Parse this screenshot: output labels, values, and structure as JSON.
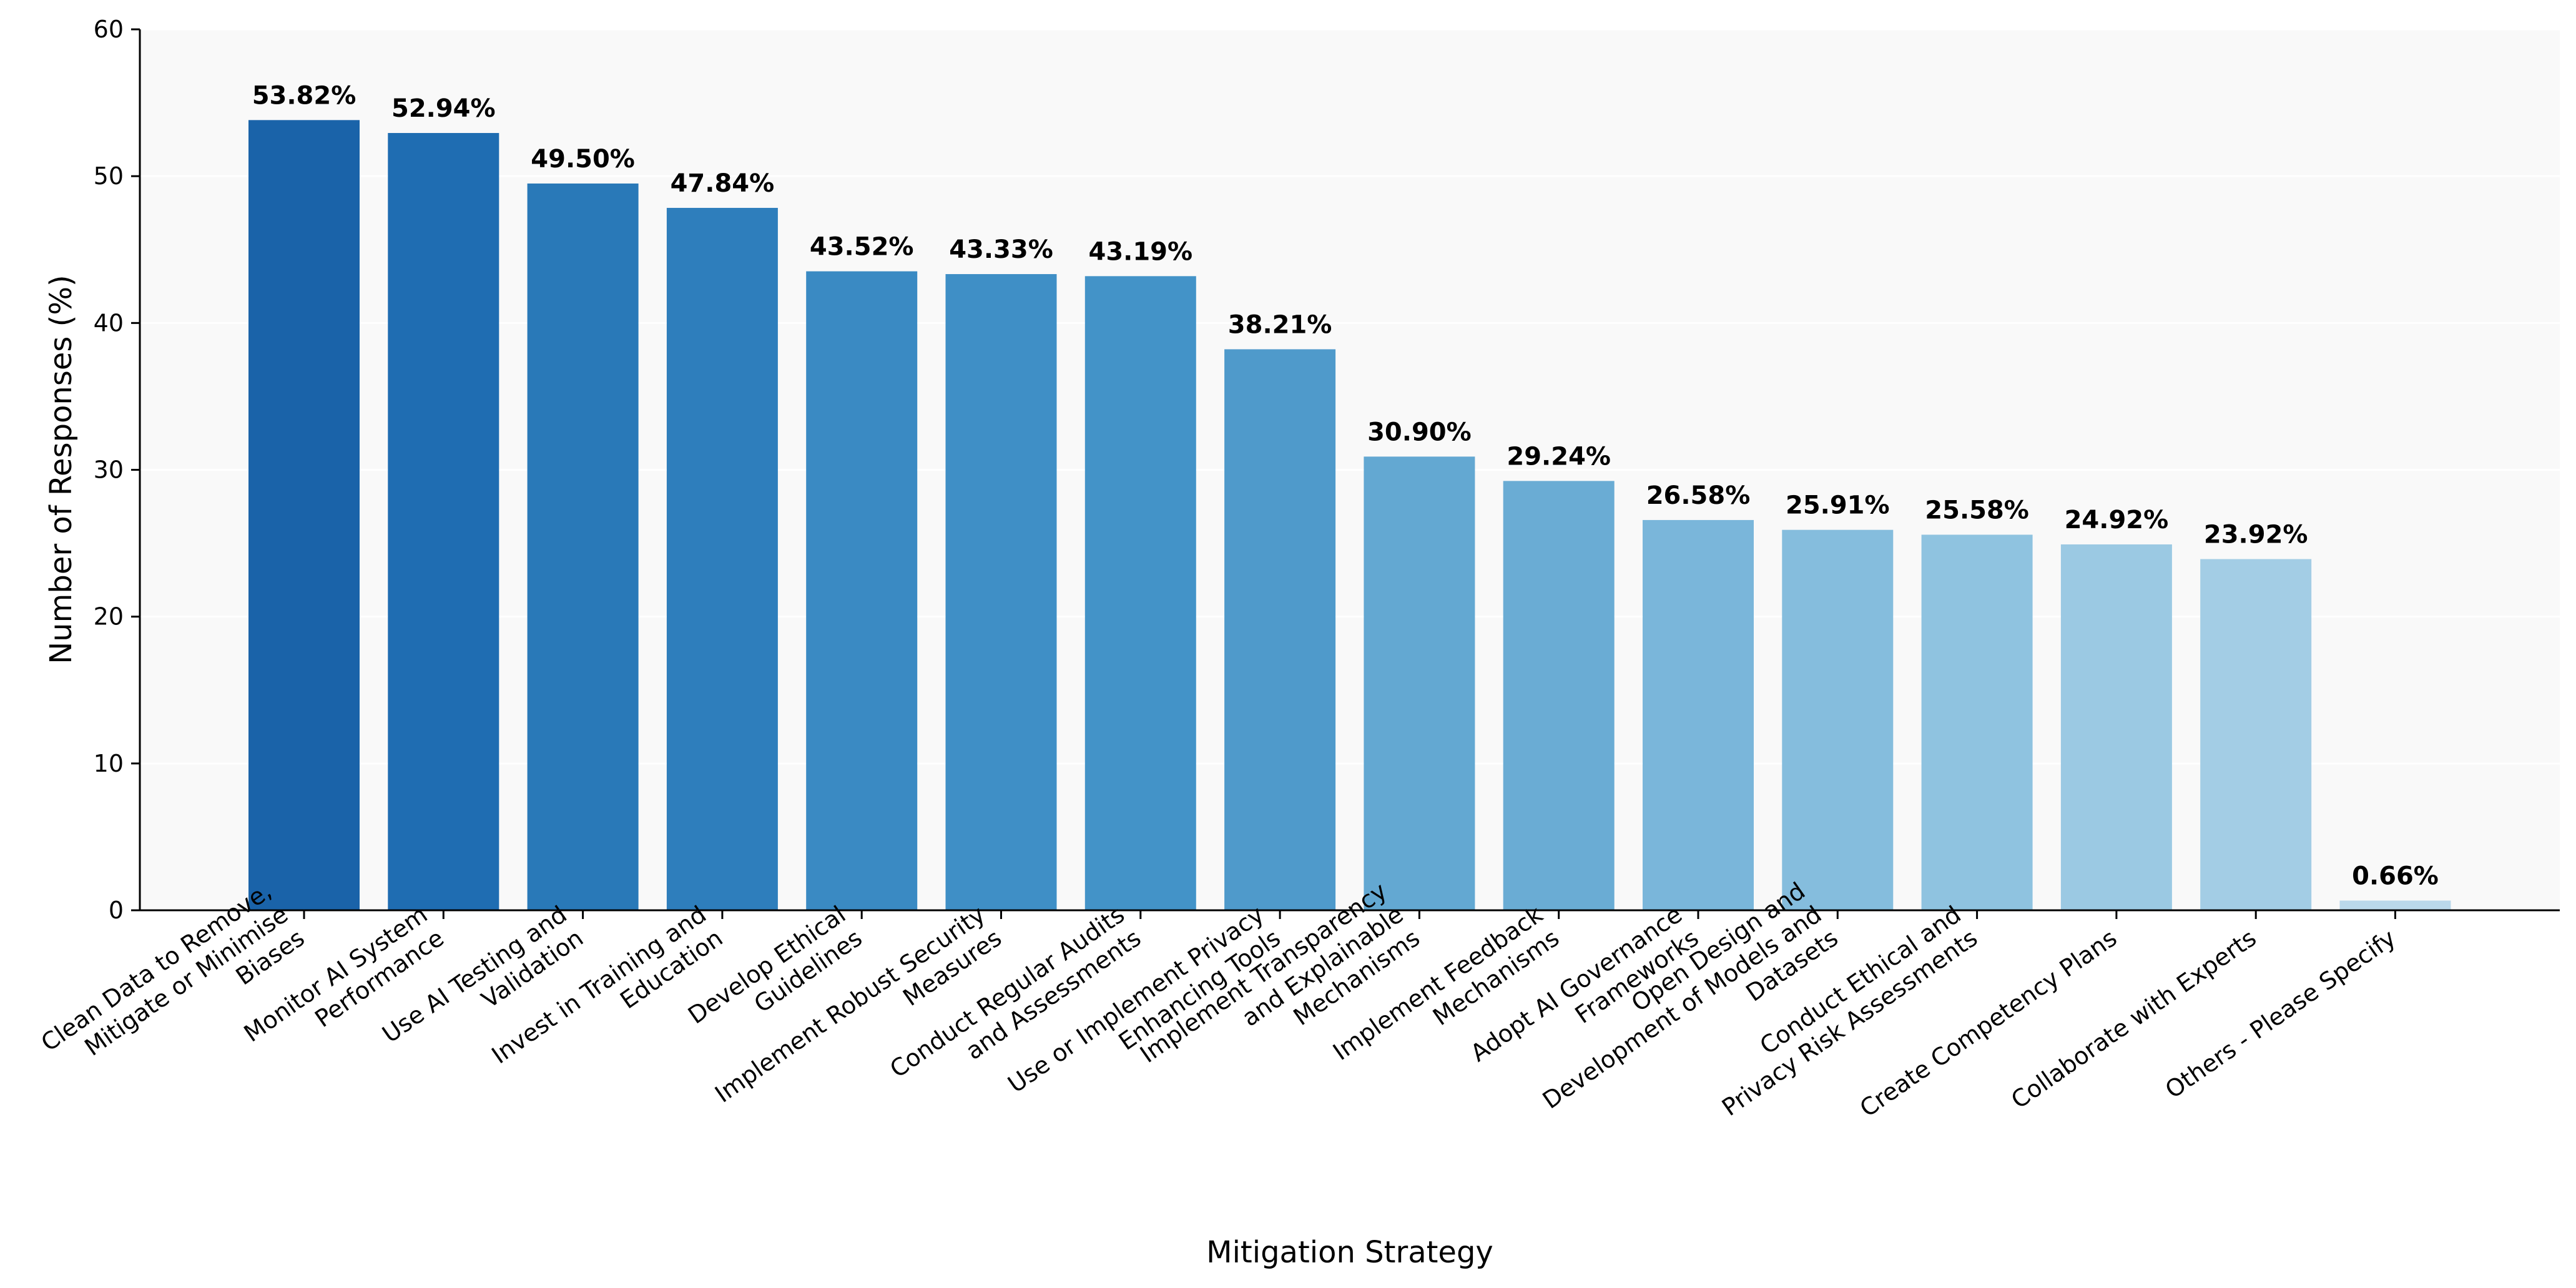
{
  "chart_data": {
    "type": "bar",
    "title": "",
    "xlabel": "Mitigation Strategy",
    "ylabel": "Number of Responses (%)",
    "ylim": [
      0,
      60
    ],
    "yticks": [
      "0",
      "10",
      "20",
      "30",
      "40",
      "50",
      "60"
    ],
    "grid": "horizontal",
    "categories": [
      [
        "Clean Data to Remove,",
        "Mitigate or Minimise",
        "Biases"
      ],
      [
        "Monitor AI System",
        "Performance"
      ],
      [
        "Use AI Testing and",
        "Validation"
      ],
      [
        "Invest in Training and",
        "Education"
      ],
      [
        "Develop Ethical",
        "Guidelines"
      ],
      [
        "Implement Robust Security",
        "Measures"
      ],
      [
        "Conduct Regular Audits",
        "and Assessments"
      ],
      [
        "Use or Implement Privacy",
        "Enhancing Tools"
      ],
      [
        "Implement Transparency",
        "and Explainable",
        "Mechanisms"
      ],
      [
        "Implement Feedback",
        "Mechanisms"
      ],
      [
        "Adopt AI Governance",
        "Frameworks"
      ],
      [
        "Open Design and",
        "Development of Models and",
        "Datasets"
      ],
      [
        "Conduct Ethical and",
        "Privacy Risk Assessments"
      ],
      [
        "Create Competency Plans"
      ],
      [
        "Collaborate with Experts"
      ],
      [
        "Others - Please Specify"
      ]
    ],
    "values": [
      53.82,
      52.94,
      49.5,
      47.84,
      43.52,
      43.33,
      43.19,
      38.21,
      30.9,
      29.24,
      26.58,
      25.91,
      25.58,
      24.92,
      23.92,
      0.66
    ],
    "value_labels": [
      "53.82%",
      "52.94%",
      "49.50%",
      "47.84%",
      "43.52%",
      "43.33%",
      "43.19%",
      "38.21%",
      "30.90%",
      "29.24%",
      "26.58%",
      "25.91%",
      "25.58%",
      "24.92%",
      "23.92%",
      "0.66%"
    ],
    "colors": [
      "#1a63a9",
      "#1f6db2",
      "#2979b8",
      "#2e7ebc",
      "#3a8ac3",
      "#3f8fc6",
      "#4393c8",
      "#4f9acb",
      "#63a8d2",
      "#6aacd4",
      "#7ab6da",
      "#85bddd",
      "#8fc3e0",
      "#9bc9e3",
      "#a3cde5",
      "#bad8ea"
    ],
    "plot_background": "#f9f9f9"
  }
}
